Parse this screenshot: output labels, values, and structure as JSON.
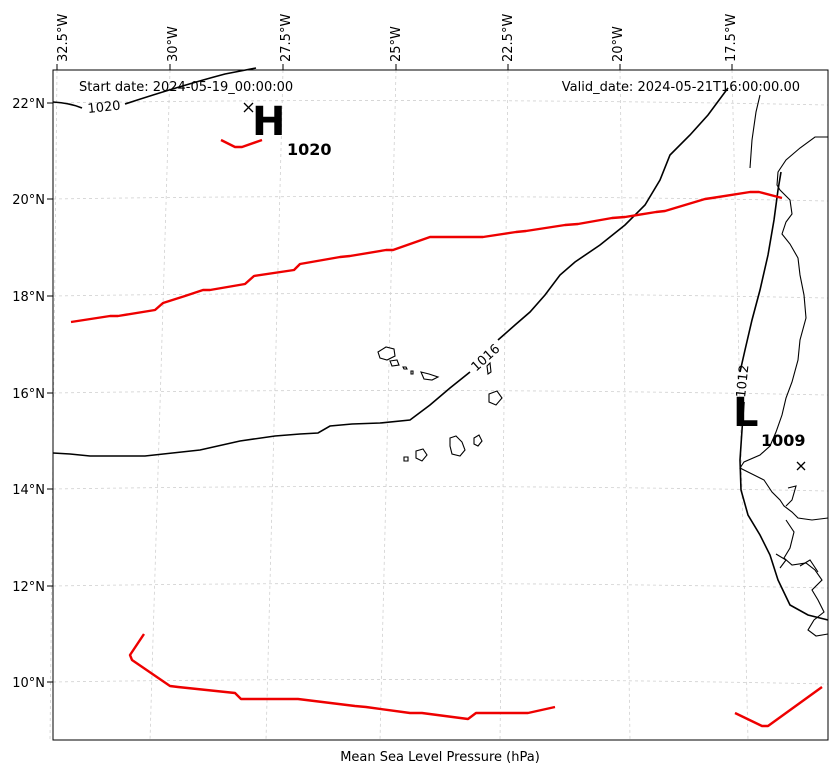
{
  "header": {
    "start_date": "Start date: 2024-05-19_00:00:00",
    "valid_date": "Valid_date: 2024-05-21T16:00:00.00"
  },
  "footer": {
    "title": "Mean Sea Level Pressure (hPa)"
  },
  "axes": {
    "lon_ticks": [
      "32.5°W",
      "30°W",
      "27.5°W",
      "25°W",
      "22.5°W",
      "20°W",
      "17.5°W"
    ],
    "lat_ticks": [
      "22°N",
      "20°N",
      "18°N",
      "16°N",
      "14°N",
      "12°N",
      "10°N"
    ]
  },
  "isobars": {
    "label_1020": "1020",
    "label_1016": "1016",
    "label_1012": "1012"
  },
  "pressure_centers": {
    "high": {
      "symbol": "H",
      "value": "1020"
    },
    "low": {
      "symbol": "L",
      "value": "1009"
    }
  },
  "colors": {
    "front": "#ee0000",
    "isobar": "#000000",
    "grid": "#d0d0d0"
  }
}
